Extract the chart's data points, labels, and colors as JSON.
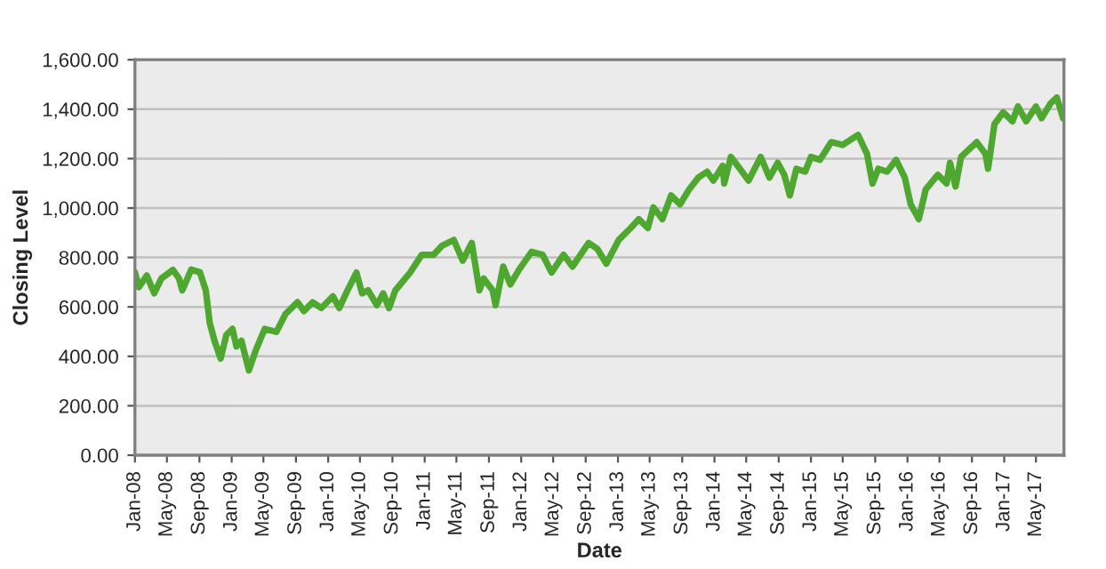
{
  "chart_data": {
    "type": "line",
    "xlabel": "Date",
    "ylabel": "Closing Level",
    "series": [
      {
        "color": "#4ea72e",
        "x": [
          "2008-01-01",
          "2008-01-16",
          "2008-02-15",
          "2008-03-14",
          "2008-04-10",
          "2008-05-24",
          "2008-06-16",
          "2008-06-28",
          "2008-08-01",
          "2008-09-03",
          "2008-09-25",
          "2008-10-10",
          "2008-10-28",
          "2008-11-20",
          "2008-12-12",
          "2009-01-04",
          "2009-01-19",
          "2009-02-07",
          "2009-03-07",
          "2009-04-03",
          "2009-05-06",
          "2009-06-19",
          "2009-07-23",
          "2009-09-07",
          "2009-10-01",
          "2009-11-03",
          "2009-12-06",
          "2010-01-19",
          "2010-02-12",
          "2010-03-15",
          "2010-04-18",
          "2010-05-09",
          "2010-06-01",
          "2010-07-04",
          "2010-07-28",
          "2010-08-19",
          "2010-09-12",
          "2010-11-07",
          "2010-12-21",
          "2011-02-04",
          "2011-03-07",
          "2011-04-21",
          "2011-05-25",
          "2011-06-28",
          "2011-07-27",
          "2011-08-12",
          "2011-09-15",
          "2011-09-26",
          "2011-10-25",
          "2011-11-21",
          "2011-12-24",
          "2012-02-09",
          "2012-03-22",
          "2012-04-25",
          "2012-06-09",
          "2012-07-13",
          "2012-09-12",
          "2012-10-15",
          "2012-11-18",
          "2013-01-04",
          "2013-02-18",
          "2013-03-21",
          "2013-04-24",
          "2013-05-15",
          "2013-06-18",
          "2013-07-21",
          "2013-08-24",
          "2013-09-27",
          "2013-11-01",
          "2013-12-04",
          "2013-12-28",
          "2014-02-01",
          "2014-02-07",
          "2014-03-04",
          "2014-04-07",
          "2014-05-10",
          "2014-06-25",
          "2014-07-28",
          "2014-08-28",
          "2014-09-22",
          "2014-10-13",
          "2014-11-07",
          "2014-12-10",
          "2015-01-01",
          "2015-02-04",
          "2015-03-19",
          "2015-05-01",
          "2015-06-28",
          "2015-08-01",
          "2015-08-22",
          "2015-09-13",
          "2015-10-16",
          "2015-11-19",
          "2015-12-22",
          "2016-01-13",
          "2016-02-13",
          "2016-03-10",
          "2016-04-25",
          "2016-05-28",
          "2016-06-10",
          "2016-07-01",
          "2016-07-22",
          "2016-09-19",
          "2016-10-22",
          "2016-11-01",
          "2016-11-25",
          "2016-12-28",
          "2017-02-01",
          "2017-02-22",
          "2017-03-25",
          "2017-05-01",
          "2017-05-22",
          "2017-06-25",
          "2017-07-19",
          "2017-08-12"
        ],
        "values": [
          740,
          680,
          727,
          655,
          715,
          750,
          715,
          667,
          751,
          740,
          667,
          535,
          463,
          391,
          487,
          511,
          440,
          463,
          343,
          427,
          511,
          499,
          571,
          619,
          583,
          619,
          595,
          643,
          595,
          667,
          739,
          655,
          667,
          607,
          655,
          595,
          667,
          739,
          811,
          811,
          847,
          871,
          787,
          859,
          667,
          715,
          667,
          607,
          763,
          691,
          751,
          823,
          811,
          739,
          811,
          763,
          859,
          835,
          775,
          871,
          919,
          955,
          919,
          1003,
          955,
          1051,
          1015,
          1075,
          1123,
          1147,
          1111,
          1171,
          1099,
          1207,
          1159,
          1111,
          1207,
          1123,
          1183,
          1135,
          1051,
          1159,
          1147,
          1207,
          1195,
          1267,
          1255,
          1296,
          1219,
          1099,
          1159,
          1147,
          1195,
          1123,
          1015,
          955,
          1075,
          1135,
          1099,
          1183,
          1087,
          1207,
          1267,
          1219,
          1159,
          1339,
          1387,
          1351,
          1411,
          1351,
          1411,
          1363,
          1423,
          1447,
          1363
        ]
      }
    ],
    "ylim": [
      0,
      1600
    ],
    "yticks": [
      {
        "value": 0,
        "label": "0.00"
      },
      {
        "value": 200,
        "label": "200.00"
      },
      {
        "value": 400,
        "label": "400.00"
      },
      {
        "value": 600,
        "label": "600.00"
      },
      {
        "value": 800,
        "label": "800.00"
      },
      {
        "value": 1000,
        "label": "1,000.00"
      },
      {
        "value": 1200,
        "label": "1,200.00"
      },
      {
        "value": 1400,
        "label": "1,400.00"
      },
      {
        "value": 1600,
        "label": "1,600.00"
      }
    ],
    "xlim": [
      "2008-01-01",
      "2017-08-15"
    ],
    "xticks": [
      {
        "value": "2008-01-01",
        "label": "Jan-08"
      },
      {
        "value": "2008-05-01",
        "label": "May-08"
      },
      {
        "value": "2008-09-01",
        "label": "Sep-08"
      },
      {
        "value": "2009-01-01",
        "label": "Jan-09"
      },
      {
        "value": "2009-05-01",
        "label": "May-09"
      },
      {
        "value": "2009-09-01",
        "label": "Sep-09"
      },
      {
        "value": "2010-01-01",
        "label": "Jan-10"
      },
      {
        "value": "2010-05-01",
        "label": "May-10"
      },
      {
        "value": "2010-09-01",
        "label": "Sep-10"
      },
      {
        "value": "2011-01-01",
        "label": "Jan-11"
      },
      {
        "value": "2011-05-01",
        "label": "May-11"
      },
      {
        "value": "2011-09-01",
        "label": "Sep-11"
      },
      {
        "value": "2012-01-01",
        "label": "Jan-12"
      },
      {
        "value": "2012-05-01",
        "label": "May-12"
      },
      {
        "value": "2012-09-01",
        "label": "Sep-12"
      },
      {
        "value": "2013-01-01",
        "label": "Jan-13"
      },
      {
        "value": "2013-05-01",
        "label": "May-13"
      },
      {
        "value": "2013-09-01",
        "label": "Sep-13"
      },
      {
        "value": "2014-01-01",
        "label": "Jan-14"
      },
      {
        "value": "2014-05-01",
        "label": "May-14"
      },
      {
        "value": "2014-09-01",
        "label": "Sep-14"
      },
      {
        "value": "2015-01-01",
        "label": "Jan-15"
      },
      {
        "value": "2015-05-01",
        "label": "May-15"
      },
      {
        "value": "2015-09-01",
        "label": "Sep-15"
      },
      {
        "value": "2016-01-01",
        "label": "Jan-16"
      },
      {
        "value": "2016-05-01",
        "label": "May-16"
      },
      {
        "value": "2016-09-01",
        "label": "Sep-16"
      },
      {
        "value": "2017-01-01",
        "label": "Jan-17"
      },
      {
        "value": "2017-05-01",
        "label": "May-17"
      }
    ],
    "grid": "y",
    "marker": "none",
    "line_style": "solid"
  }
}
